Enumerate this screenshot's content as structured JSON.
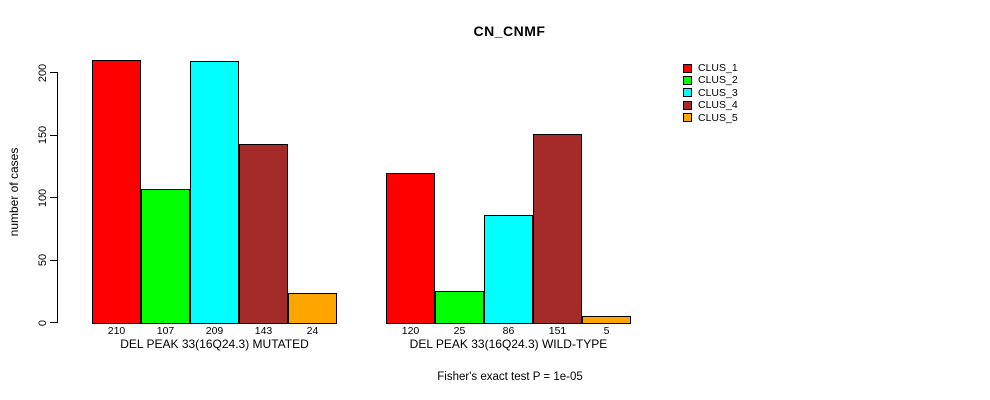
{
  "title": "CN_CNMF",
  "footer": "Fisher's exact test P = 1e-05",
  "chart_data": {
    "type": "bar",
    "title": "CN_CNMF",
    "xlabel": "",
    "ylabel": "number of cases",
    "ylim": [
      0,
      200
    ],
    "yticks": [
      0,
      50,
      100,
      150,
      200
    ],
    "grid": false,
    "legend_position": "right",
    "series_names": [
      "CLUS_1",
      "CLUS_2",
      "CLUS_3",
      "CLUS_4",
      "CLUS_5"
    ],
    "colors": [
      "#ff0000",
      "#00ff00",
      "#00ffff",
      "#a52a2a",
      "#ffa500"
    ],
    "groups": [
      {
        "label": "DEL PEAK 33(16Q24.3) MUTATED",
        "values": [
          210,
          107,
          209,
          143,
          24
        ]
      },
      {
        "label": "DEL PEAK 33(16Q24.3) WILD-TYPE",
        "values": [
          120,
          25,
          86,
          151,
          5
        ]
      }
    ],
    "bar_value_labels_shown": true,
    "annotation": "Fisher's exact test P = 1e-05"
  },
  "legend": {
    "items": [
      {
        "label": "CLUS_1",
        "color": "#ff0000"
      },
      {
        "label": "CLUS_2",
        "color": "#00ff00"
      },
      {
        "label": "CLUS_3",
        "color": "#00ffff"
      },
      {
        "label": "CLUS_4",
        "color": "#a52a2a"
      },
      {
        "label": "CLUS_5",
        "color": "#ffa500"
      }
    ]
  }
}
